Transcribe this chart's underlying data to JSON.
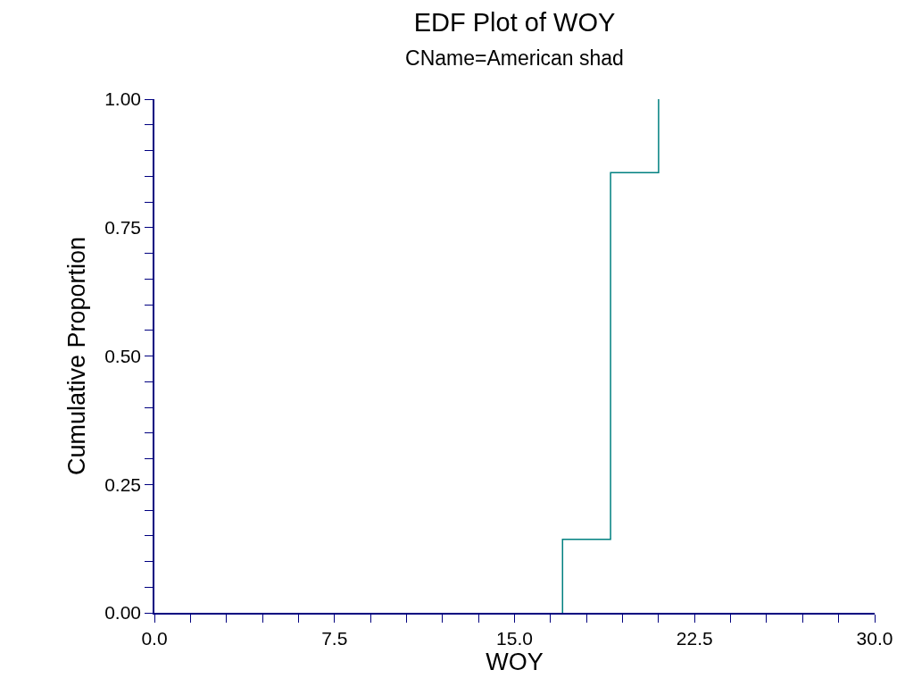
{
  "chart_data": {
    "type": "step",
    "title": "EDF Plot of WOY",
    "subtitle": "CName=American shad",
    "xlabel": "WOY",
    "ylabel": "Cumulative Proportion",
    "x": [
      17,
      17,
      19,
      21
    ],
    "series": [
      {
        "color": "#008080",
        "values": [
          0,
          0.143,
          0.857,
          1.0
        ]
      }
    ],
    "xlim": [
      0,
      30
    ],
    "xticks": [
      {
        "value": 0,
        "label": "0.0"
      },
      {
        "value": 1.5,
        "label": null
      },
      {
        "value": 3,
        "label": null
      },
      {
        "value": 4.5,
        "label": null
      },
      {
        "value": 6,
        "label": null
      },
      {
        "value": 7.5,
        "label": "7.5"
      },
      {
        "value": 9,
        "label": null
      },
      {
        "value": 10.5,
        "label": null
      },
      {
        "value": 12,
        "label": null
      },
      {
        "value": 13.5,
        "label": null
      },
      {
        "value": 15,
        "label": "15.0"
      },
      {
        "value": 16.5,
        "label": null
      },
      {
        "value": 18,
        "label": null
      },
      {
        "value": 19.5,
        "label": null
      },
      {
        "value": 21,
        "label": null
      },
      {
        "value": 22.5,
        "label": "22.5"
      },
      {
        "value": 24,
        "label": null
      },
      {
        "value": 25.5,
        "label": null
      },
      {
        "value": 27,
        "label": null
      },
      {
        "value": 28.5,
        "label": null
      },
      {
        "value": 30,
        "label": "30.0"
      }
    ],
    "ylim": [
      0,
      1
    ],
    "yticks": [
      {
        "value": 0,
        "label": "0.00"
      },
      {
        "value": 0.05,
        "label": null
      },
      {
        "value": 0.1,
        "label": null
      },
      {
        "value": 0.15,
        "label": null
      },
      {
        "value": 0.2,
        "label": null
      },
      {
        "value": 0.25,
        "label": "0.25"
      },
      {
        "value": 0.3,
        "label": null
      },
      {
        "value": 0.35,
        "label": null
      },
      {
        "value": 0.4,
        "label": null
      },
      {
        "value": 0.45,
        "label": null
      },
      {
        "value": 0.5,
        "label": "0.50"
      },
      {
        "value": 0.55,
        "label": null
      },
      {
        "value": 0.6,
        "label": null
      },
      {
        "value": 0.65,
        "label": null
      },
      {
        "value": 0.7,
        "label": null
      },
      {
        "value": 0.75,
        "label": "0.75"
      },
      {
        "value": 0.8,
        "label": null
      },
      {
        "value": 0.85,
        "label": null
      },
      {
        "value": 0.9,
        "label": null
      },
      {
        "value": 0.95,
        "label": null
      },
      {
        "value": 1,
        "label": "1.00"
      }
    ],
    "marker": "none",
    "line_style": "solid"
  }
}
